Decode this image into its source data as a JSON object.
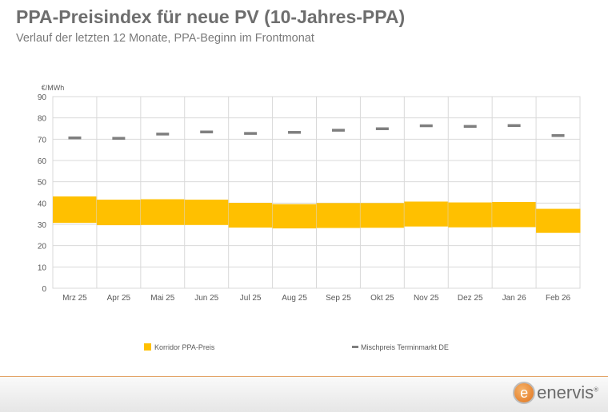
{
  "title": "PPA-Preisindex für neue PV (10-Jahres-PPA)",
  "subtitle": "Verlauf der letzten 12 Monate, PPA-Beginn im Frontmonat",
  "logo": {
    "text": "enervis",
    "mark": "e",
    "reg": "®"
  },
  "colors": {
    "band": "#ffc000",
    "dash": "#7f7f7f",
    "grid": "#d9d9d9"
  },
  "chart_data": {
    "type": "bar",
    "ylabel": "€/MWh",
    "ylim": [
      0,
      90
    ],
    "yticks": [
      0,
      10,
      20,
      30,
      40,
      50,
      60,
      70,
      80,
      90
    ],
    "grid": true,
    "legend_placement": "bottom",
    "categories": [
      "Mrz 25",
      "Apr 25",
      "Mai 25",
      "Jun 25",
      "Jul 25",
      "Aug 25",
      "Sep 25",
      "Okt 25",
      "Nov 25",
      "Dez 25",
      "Jan 26",
      "Feb 26"
    ],
    "series": [
      {
        "name": "Korridor PPA-Preis",
        "type": "range",
        "low": [
          30.7,
          29.6,
          29.7,
          29.7,
          28.5,
          28.1,
          28.3,
          28.4,
          29.0,
          28.6,
          28.7,
          26.0
        ],
        "high": [
          43.1,
          41.6,
          41.8,
          41.6,
          40.1,
          39.5,
          40.0,
          40.0,
          40.7,
          40.3,
          40.5,
          37.3
        ]
      },
      {
        "name": "Mischpreis Terminmarkt DE",
        "type": "marker",
        "values": [
          70.7,
          70.5,
          72.5,
          73.5,
          72.8,
          73.3,
          74.3,
          75.0,
          76.4,
          76.1,
          76.5,
          71.8
        ]
      }
    ]
  }
}
